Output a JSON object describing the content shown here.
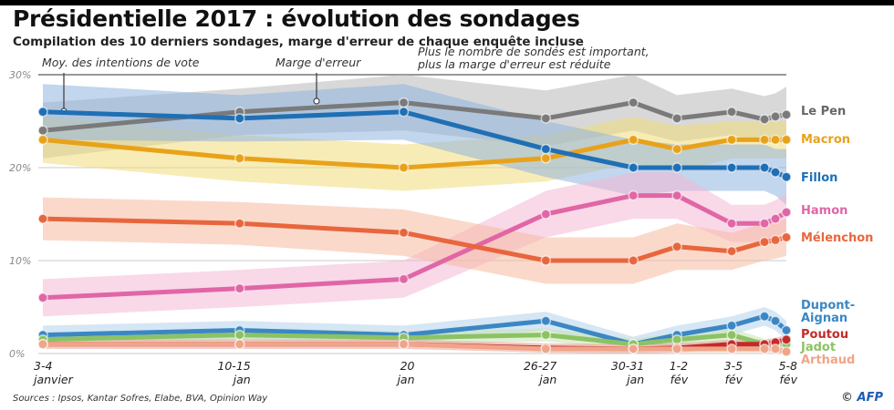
{
  "header": {
    "title": "Présidentielle 2017 : évolution des sondages",
    "subtitle": "Compilation des 10 derniers sondages, marge d'erreur de chaque enquête incluse"
  },
  "annotations": {
    "average": "Moy. des intentions de vote",
    "margin": "Marge d'erreur",
    "note_line1": "Plus le nombre de sondés est important,",
    "note_line2": "plus la marge d'erreur est réduite"
  },
  "footer": {
    "sources": "Sources : Ipsos, Kantar Sofres, Elabe, BVA, Opinion Way",
    "copyright": "©",
    "agency": "AFP"
  },
  "chart_data": {
    "type": "line",
    "title": "Présidentielle 2017 : évolution des sondages",
    "xlabel": "",
    "ylabel": "",
    "ylim": [
      0,
      30
    ],
    "yticks": [
      0,
      10,
      20,
      30
    ],
    "ytick_labels": [
      "0%",
      "10%",
      "20%",
      "30%"
    ],
    "grid": true,
    "legend": "right (labels at line ends)",
    "x_positions_days": [
      3.5,
      12.5,
      20,
      26.5,
      30.5,
      32.5,
      35,
      36.5,
      37,
      37.5
    ],
    "x_tick_labels": [
      {
        "day": 3.5,
        "line1": "3-4",
        "line2": "janvier"
      },
      {
        "day": 12.5,
        "line1": "10-15",
        "line2": "jan"
      },
      {
        "day": 20,
        "line1": "20",
        "line2": "jan"
      },
      {
        "day": 26.5,
        "line1": "26-27",
        "line2": "jan"
      },
      {
        "day": 30.5,
        "line1": "30-31",
        "line2": "jan"
      },
      {
        "day": 32.5,
        "line1": "1-2",
        "line2": "fév"
      },
      {
        "day": 35,
        "line1": "3-5",
        "line2": "fév"
      },
      {
        "day": 37.5,
        "line1": "5-8",
        "line2": "fév"
      }
    ],
    "series": [
      {
        "name": "Le Pen",
        "color": "#7a7a7a",
        "band": "#b8b8b8",
        "values": [
          24,
          26,
          27,
          25.3,
          27,
          25.3,
          26,
          25.2,
          25.5,
          25.7
        ],
        "margin": [
          3,
          2.5,
          3,
          3,
          3,
          2.5,
          2.5,
          2.5,
          2.5,
          3
        ]
      },
      {
        "name": "Macron",
        "color": "#e8a21a",
        "band": "#f3dc7a",
        "values": [
          23,
          21,
          20,
          21,
          23,
          22,
          23,
          23,
          23,
          23
        ],
        "margin": [
          2.5,
          2.5,
          2.5,
          2.5,
          2.5,
          2.5,
          2,
          2,
          2,
          2
        ]
      },
      {
        "name": "Fillon",
        "color": "#1f6fb5",
        "band": "#8fb4df",
        "values": [
          26,
          25.3,
          26,
          22,
          20,
          20,
          20,
          20,
          19.5,
          19
        ],
        "margin": [
          3,
          2.5,
          3,
          3,
          3,
          2.5,
          2.5,
          2.5,
          2.5,
          3
        ]
      },
      {
        "name": "Hamon",
        "color": "#e066a6",
        "band": "#f4b8d6",
        "values": [
          6,
          7,
          8,
          15,
          17,
          17,
          14,
          14,
          14.5,
          15.2
        ],
        "margin": [
          2,
          2,
          2,
          2.5,
          2.5,
          2.5,
          2,
          2,
          2,
          2
        ]
      },
      {
        "name": "Mélenchon",
        "color": "#e8663d",
        "band": "#f5b9a0",
        "values": [
          14.5,
          14,
          13,
          10,
          10,
          11.5,
          11,
          12,
          12.2,
          12.5
        ],
        "margin": [
          2.3,
          2.3,
          2.5,
          2.5,
          2.5,
          2.5,
          2,
          2,
          2,
          2
        ]
      },
      {
        "name": "Dupont-Aignan",
        "color": "#3b87c4",
        "band": "#b3d2ec",
        "values": [
          2,
          2.5,
          2,
          3.5,
          1,
          2,
          3,
          4,
          3.5,
          2.5
        ],
        "margin": [
          1,
          1,
          1,
          1,
          0.8,
          1,
          1,
          1,
          1,
          1
        ]
      },
      {
        "name": "Jadot",
        "color": "#8cc264",
        "band": "#c7e3b0",
        "values": [
          1.5,
          2,
          1.7,
          2,
          1,
          1.5,
          2,
          1,
          1,
          1
        ],
        "margin": [
          0.7,
          0.7,
          0.7,
          0.7,
          0.6,
          0.7,
          0.7,
          0.6,
          0.6,
          0.6
        ]
      },
      {
        "name": "Poutou",
        "color": "#c42a2a",
        "band": "#e89a9a",
        "values": [
          1,
          1,
          1,
          0.6,
          0.5,
          0.6,
          1,
          1,
          1.2,
          1.5
        ],
        "margin": [
          0.5,
          0.5,
          0.5,
          0.5,
          0.5,
          0.5,
          0.5,
          0.5,
          0.5,
          0.5
        ]
      },
      {
        "name": "Arthaud",
        "color": "#f0a488",
        "band": "#f7d0c0",
        "values": [
          1,
          1,
          1,
          0.5,
          0.5,
          0.5,
          0.5,
          0.5,
          0.5,
          0.2
        ],
        "margin": [
          0.4,
          0.4,
          0.4,
          0.4,
          0.4,
          0.4,
          0.4,
          0.4,
          0.4,
          0.4
        ]
      }
    ],
    "end_labels": [
      {
        "series": "Le Pen",
        "text": "Le Pen",
        "color": "#666666"
      },
      {
        "series": "Macron",
        "text": "Macron",
        "color": "#e8a21a"
      },
      {
        "series": "Fillon",
        "text": "Fillon",
        "color": "#1f6fb5"
      },
      {
        "series": "Hamon",
        "text": "Hamon",
        "color": "#e066a6"
      },
      {
        "series": "Mélenchon",
        "text": "Mélenchon",
        "color": "#e8663d"
      },
      {
        "series": "Dupont-Aignan",
        "text": "Dupont-",
        "text2": "Aignan",
        "color": "#3b87c4"
      },
      {
        "series": "Poutou",
        "text": "Poutou",
        "color": "#c42a2a"
      },
      {
        "series": "Jadot",
        "text": "Jadot",
        "color": "#8cc264"
      },
      {
        "series": "Arthaud",
        "text": "Arthaud",
        "color": "#f0a488"
      }
    ]
  }
}
